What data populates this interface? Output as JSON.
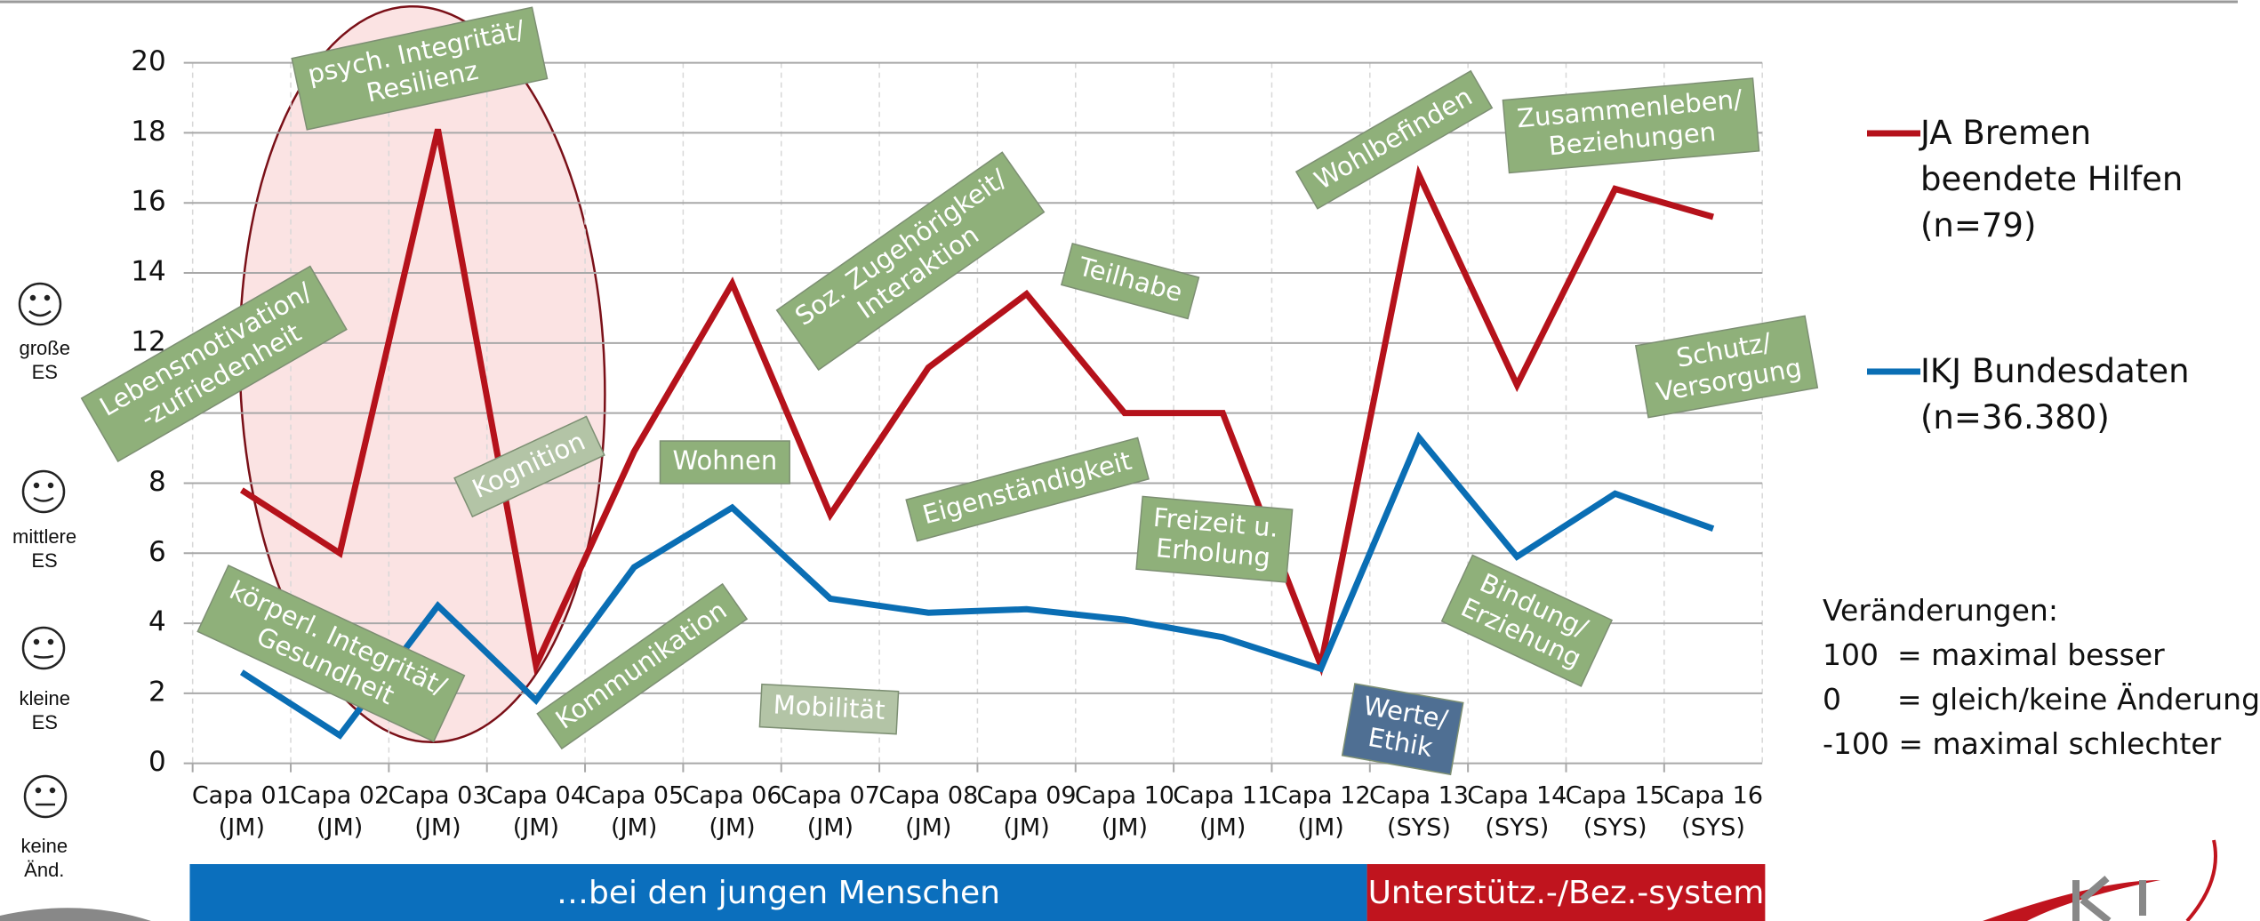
{
  "chart_data": {
    "type": "line",
    "categories": [
      "Capa 01",
      "Capa 02",
      "Capa 03",
      "Capa 04",
      "Capa 05",
      "Capa 06",
      "Capa 07",
      "Capa 08",
      "Capa 09",
      "Capa 10",
      "Capa 11",
      "Capa 12",
      "Capa 13",
      "Capa 14",
      "Capa 15",
      "Capa 16"
    ],
    "category_groups": [
      "(JM)",
      "(JM)",
      "(JM)",
      "(JM)",
      "(JM)",
      "(JM)",
      "(JM)",
      "(JM)",
      "(JM)",
      "(JM)",
      "(JM)",
      "(JM)",
      "(SYS)",
      "(SYS)",
      "(SYS)",
      "(SYS)"
    ],
    "series": [
      {
        "name": "JA Bremen beendete Hilfen (n=79)",
        "color": "#b5121b",
        "values": [
          7.8,
          6.0,
          18.1,
          2.8,
          8.9,
          13.7,
          7.1,
          11.3,
          13.4,
          10.0,
          10.0,
          2.8,
          16.8,
          10.8,
          16.4,
          15.6
        ]
      },
      {
        "name": "IKJ Bundesdaten (n=36.380)",
        "color": "#0a6eb4",
        "values": [
          2.6,
          0.8,
          4.5,
          1.8,
          5.6,
          7.3,
          4.7,
          4.3,
          4.4,
          4.1,
          3.6,
          2.7,
          9.3,
          5.9,
          7.7,
          6.7
        ]
      }
    ],
    "ylim": [
      0,
      20
    ],
    "yticks": [
      0,
      2,
      4,
      6,
      8,
      10,
      12,
      14,
      16,
      18,
      20
    ],
    "grid": true,
    "legend": "right",
    "annotations": [
      {
        "lines": [
          "psych. Integrität/",
          "Resilienz"
        ],
        "color": "#8fb07a"
      },
      {
        "lines": [
          "Lebensmotivation/",
          "-zufriedenheit"
        ],
        "color": "#8fb07a"
      },
      {
        "lines": [
          "Kognition"
        ],
        "color": "#b3c4a6"
      },
      {
        "lines": [
          "körperl. Integrität/",
          "Gesundheit"
        ],
        "color": "#8fb07a"
      },
      {
        "lines": [
          "Kommunikation"
        ],
        "color": "#8fb07a"
      },
      {
        "lines": [
          "Wohnen"
        ],
        "color": "#8fb07a"
      },
      {
        "lines": [
          "Soz. Zugehörigkeit/",
          "Interaktion"
        ],
        "color": "#8fb07a"
      },
      {
        "lines": [
          "Mobilität"
        ],
        "color": "#b3c4a6"
      },
      {
        "lines": [
          "Teilhabe"
        ],
        "color": "#8fb07a"
      },
      {
        "lines": [
          "Eigenständigkeit"
        ],
        "color": "#8fb07a"
      },
      {
        "lines": [
          "Freizeit u.",
          "Erholung"
        ],
        "color": "#8fb07a"
      },
      {
        "lines": [
          "Wohlbefinden"
        ],
        "color": "#8fb07a"
      },
      {
        "lines": [
          "Zusammenleben/",
          "Beziehungen"
        ],
        "color": "#8fb07a"
      },
      {
        "lines": [
          "Schutz/",
          "Versorgung"
        ],
        "color": "#8fb07a"
      },
      {
        "lines": [
          "Bindung/",
          "Erziehung"
        ],
        "color": "#8fb07a"
      },
      {
        "lines": [
          "Werte/",
          "Ethik"
        ],
        "color": "#4f6f93"
      }
    ],
    "effect_sizes": [
      "große ES",
      "mittlere ES",
      "kleine ES",
      "keine Änd."
    ],
    "bands": [
      {
        "label": "…bei den jungen Menschen",
        "color": "#0b6fbd"
      },
      {
        "label": "Unterstütz.-/Bez.-system",
        "color": "#c0141e"
      }
    ],
    "changes": [
      "Veränderungen:",
      "100  = maximal besser",
      "0      = gleich/keine Änderung",
      "-100 = maximal schlechter"
    ]
  }
}
